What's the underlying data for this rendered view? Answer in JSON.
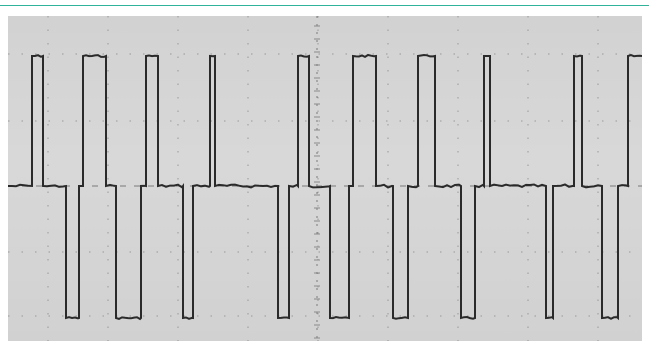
{
  "photo": {
    "subject": "oscilloscope-trace",
    "colors": {
      "screen": "#d4d4d4",
      "trace": "#2a2a2a",
      "grid": "#8a8a8a",
      "rule": "#2fb39a"
    },
    "levels": [
      "high",
      "mid",
      "low"
    ],
    "pulses": [
      {
        "from": 24,
        "to": 35,
        "level": "high"
      },
      {
        "from": 58,
        "to": 71,
        "level": "low"
      },
      {
        "from": 75,
        "to": 98,
        "level": "high"
      },
      {
        "from": 108,
        "to": 133,
        "level": "low"
      },
      {
        "from": 138,
        "to": 150,
        "level": "high"
      },
      {
        "from": 175,
        "to": 185,
        "level": "low"
      },
      {
        "from": 202,
        "to": 207,
        "level": "high"
      },
      {
        "from": 270,
        "to": 281,
        "level": "low"
      },
      {
        "from": 290,
        "to": 301,
        "level": "high"
      },
      {
        "from": 322,
        "to": 341,
        "level": "low"
      },
      {
        "from": 345,
        "to": 368,
        "level": "high"
      },
      {
        "from": 385,
        "to": 400,
        "level": "low"
      },
      {
        "from": 410,
        "to": 427,
        "level": "high"
      },
      {
        "from": 453,
        "to": 467,
        "level": "low"
      },
      {
        "from": 476,
        "to": 482,
        "level": "high"
      },
      {
        "from": 538,
        "to": 545,
        "level": "low"
      },
      {
        "from": 566,
        "to": 574,
        "level": "high"
      },
      {
        "from": 594,
        "to": 610,
        "level": "low"
      },
      {
        "from": 620,
        "to": 634,
        "level": "high"
      }
    ]
  }
}
